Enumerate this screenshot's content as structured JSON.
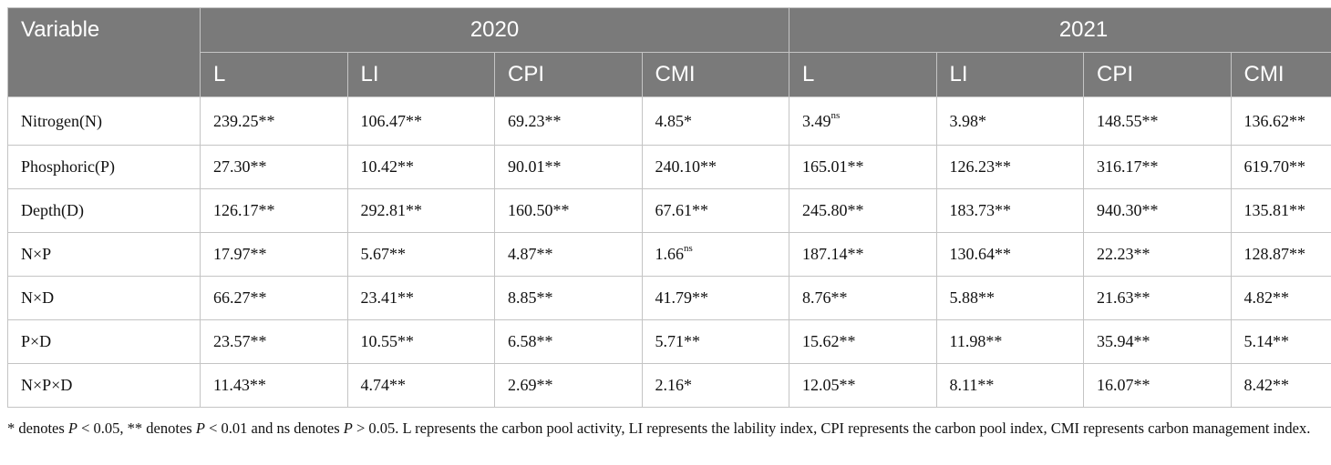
{
  "table": {
    "header": {
      "variable": "Variable",
      "year1": "2020",
      "year2": "2021",
      "sub": [
        "L",
        "LI",
        "CPI",
        "CMI",
        "L",
        "LI",
        "CPI",
        "CMI"
      ]
    },
    "rows": [
      {
        "label": "Nitrogen(N)",
        "cells": [
          {
            "v": "239.25",
            "s": "**"
          },
          {
            "v": "106.47",
            "s": "**"
          },
          {
            "v": "69.23",
            "s": "**"
          },
          {
            "v": "4.85",
            "s": "*"
          },
          {
            "v": "3.49",
            "s": "ns"
          },
          {
            "v": "3.98",
            "s": "*"
          },
          {
            "v": "148.55",
            "s": "**"
          },
          {
            "v": "136.62",
            "s": "**"
          }
        ]
      },
      {
        "label": "Phosphoric(P)",
        "cells": [
          {
            "v": "27.30",
            "s": "**"
          },
          {
            "v": "10.42",
            "s": "**"
          },
          {
            "v": "90.01",
            "s": "**"
          },
          {
            "v": "240.10",
            "s": "**"
          },
          {
            "v": "165.01",
            "s": "**"
          },
          {
            "v": "126.23",
            "s": "**"
          },
          {
            "v": "316.17",
            "s": "**"
          },
          {
            "v": "619.70",
            "s": "**"
          }
        ]
      },
      {
        "label": "Depth(D)",
        "cells": [
          {
            "v": "126.17",
            "s": "**"
          },
          {
            "v": "292.81",
            "s": "**"
          },
          {
            "v": "160.50",
            "s": "**"
          },
          {
            "v": "67.61",
            "s": "**"
          },
          {
            "v": "245.80",
            "s": "**"
          },
          {
            "v": "183.73",
            "s": "**"
          },
          {
            "v": "940.30",
            "s": "**"
          },
          {
            "v": "135.81",
            "s": "**"
          }
        ]
      },
      {
        "label": "N×P",
        "cells": [
          {
            "v": "17.97",
            "s": "**"
          },
          {
            "v": "5.67",
            "s": "**"
          },
          {
            "v": "4.87",
            "s": "**"
          },
          {
            "v": "1.66",
            "s": "ns"
          },
          {
            "v": "187.14",
            "s": "**"
          },
          {
            "v": "130.64",
            "s": "**"
          },
          {
            "v": "22.23",
            "s": "**"
          },
          {
            "v": "128.87",
            "s": "**"
          }
        ]
      },
      {
        "label": "N×D",
        "cells": [
          {
            "v": "66.27",
            "s": "**"
          },
          {
            "v": "23.41",
            "s": "**"
          },
          {
            "v": "8.85",
            "s": "**"
          },
          {
            "v": "41.79",
            "s": "**"
          },
          {
            "v": "8.76",
            "s": "**"
          },
          {
            "v": "5.88",
            "s": "**"
          },
          {
            "v": "21.63",
            "s": "**"
          },
          {
            "v": "4.82",
            "s": "**"
          }
        ]
      },
      {
        "label": "P×D",
        "cells": [
          {
            "v": "23.57",
            "s": "**"
          },
          {
            "v": "10.55",
            "s": "**"
          },
          {
            "v": "6.58",
            "s": "**"
          },
          {
            "v": "5.71",
            "s": "**"
          },
          {
            "v": "15.62",
            "s": "**"
          },
          {
            "v": "11.98",
            "s": "**"
          },
          {
            "v": "35.94",
            "s": "**"
          },
          {
            "v": "5.14",
            "s": "**"
          }
        ]
      },
      {
        "label": "N×P×D",
        "cells": [
          {
            "v": "11.43",
            "s": "**"
          },
          {
            "v": "4.74",
            "s": "**"
          },
          {
            "v": "2.69",
            "s": "**"
          },
          {
            "v": "2.16",
            "s": "*"
          },
          {
            "v": "12.05",
            "s": "**"
          },
          {
            "v": "8.11",
            "s": "**"
          },
          {
            "v": "16.07",
            "s": "**"
          },
          {
            "v": "8.42",
            "s": "**"
          }
        ]
      }
    ]
  },
  "footnote": {
    "p1": "* denotes ",
    "p": "P",
    "p2": " < 0.05, ** denotes ",
    "p3": " < 0.01 and ns denotes ",
    "p4": " > 0.05. L represents the carbon pool activity, LI represents the lability index, CPI represents the carbon pool index, CMI represents carbon management index."
  }
}
